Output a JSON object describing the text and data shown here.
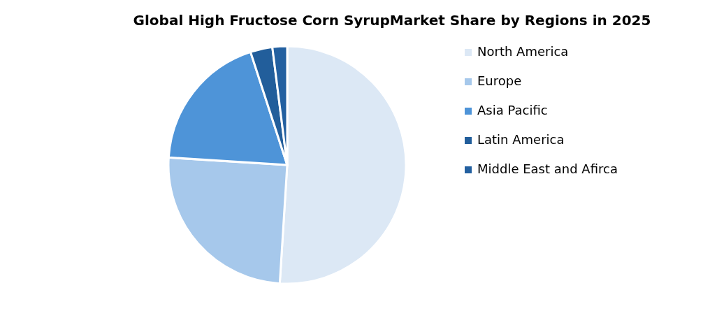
{
  "chart_data": {
    "type": "pie",
    "title": "Global High Fructose Corn SyrupMarket Share by Regions in 2025",
    "categories": [
      "North America",
      "Europe",
      "Asia Pacific",
      "Latin America",
      "Middle East and Afirca"
    ],
    "values": [
      51,
      25,
      19,
      3,
      2
    ],
    "colors": [
      "#dce8f5",
      "#a6c8eb",
      "#4e94d8",
      "#225e9b",
      "#2360a0"
    ],
    "legend": "right"
  }
}
